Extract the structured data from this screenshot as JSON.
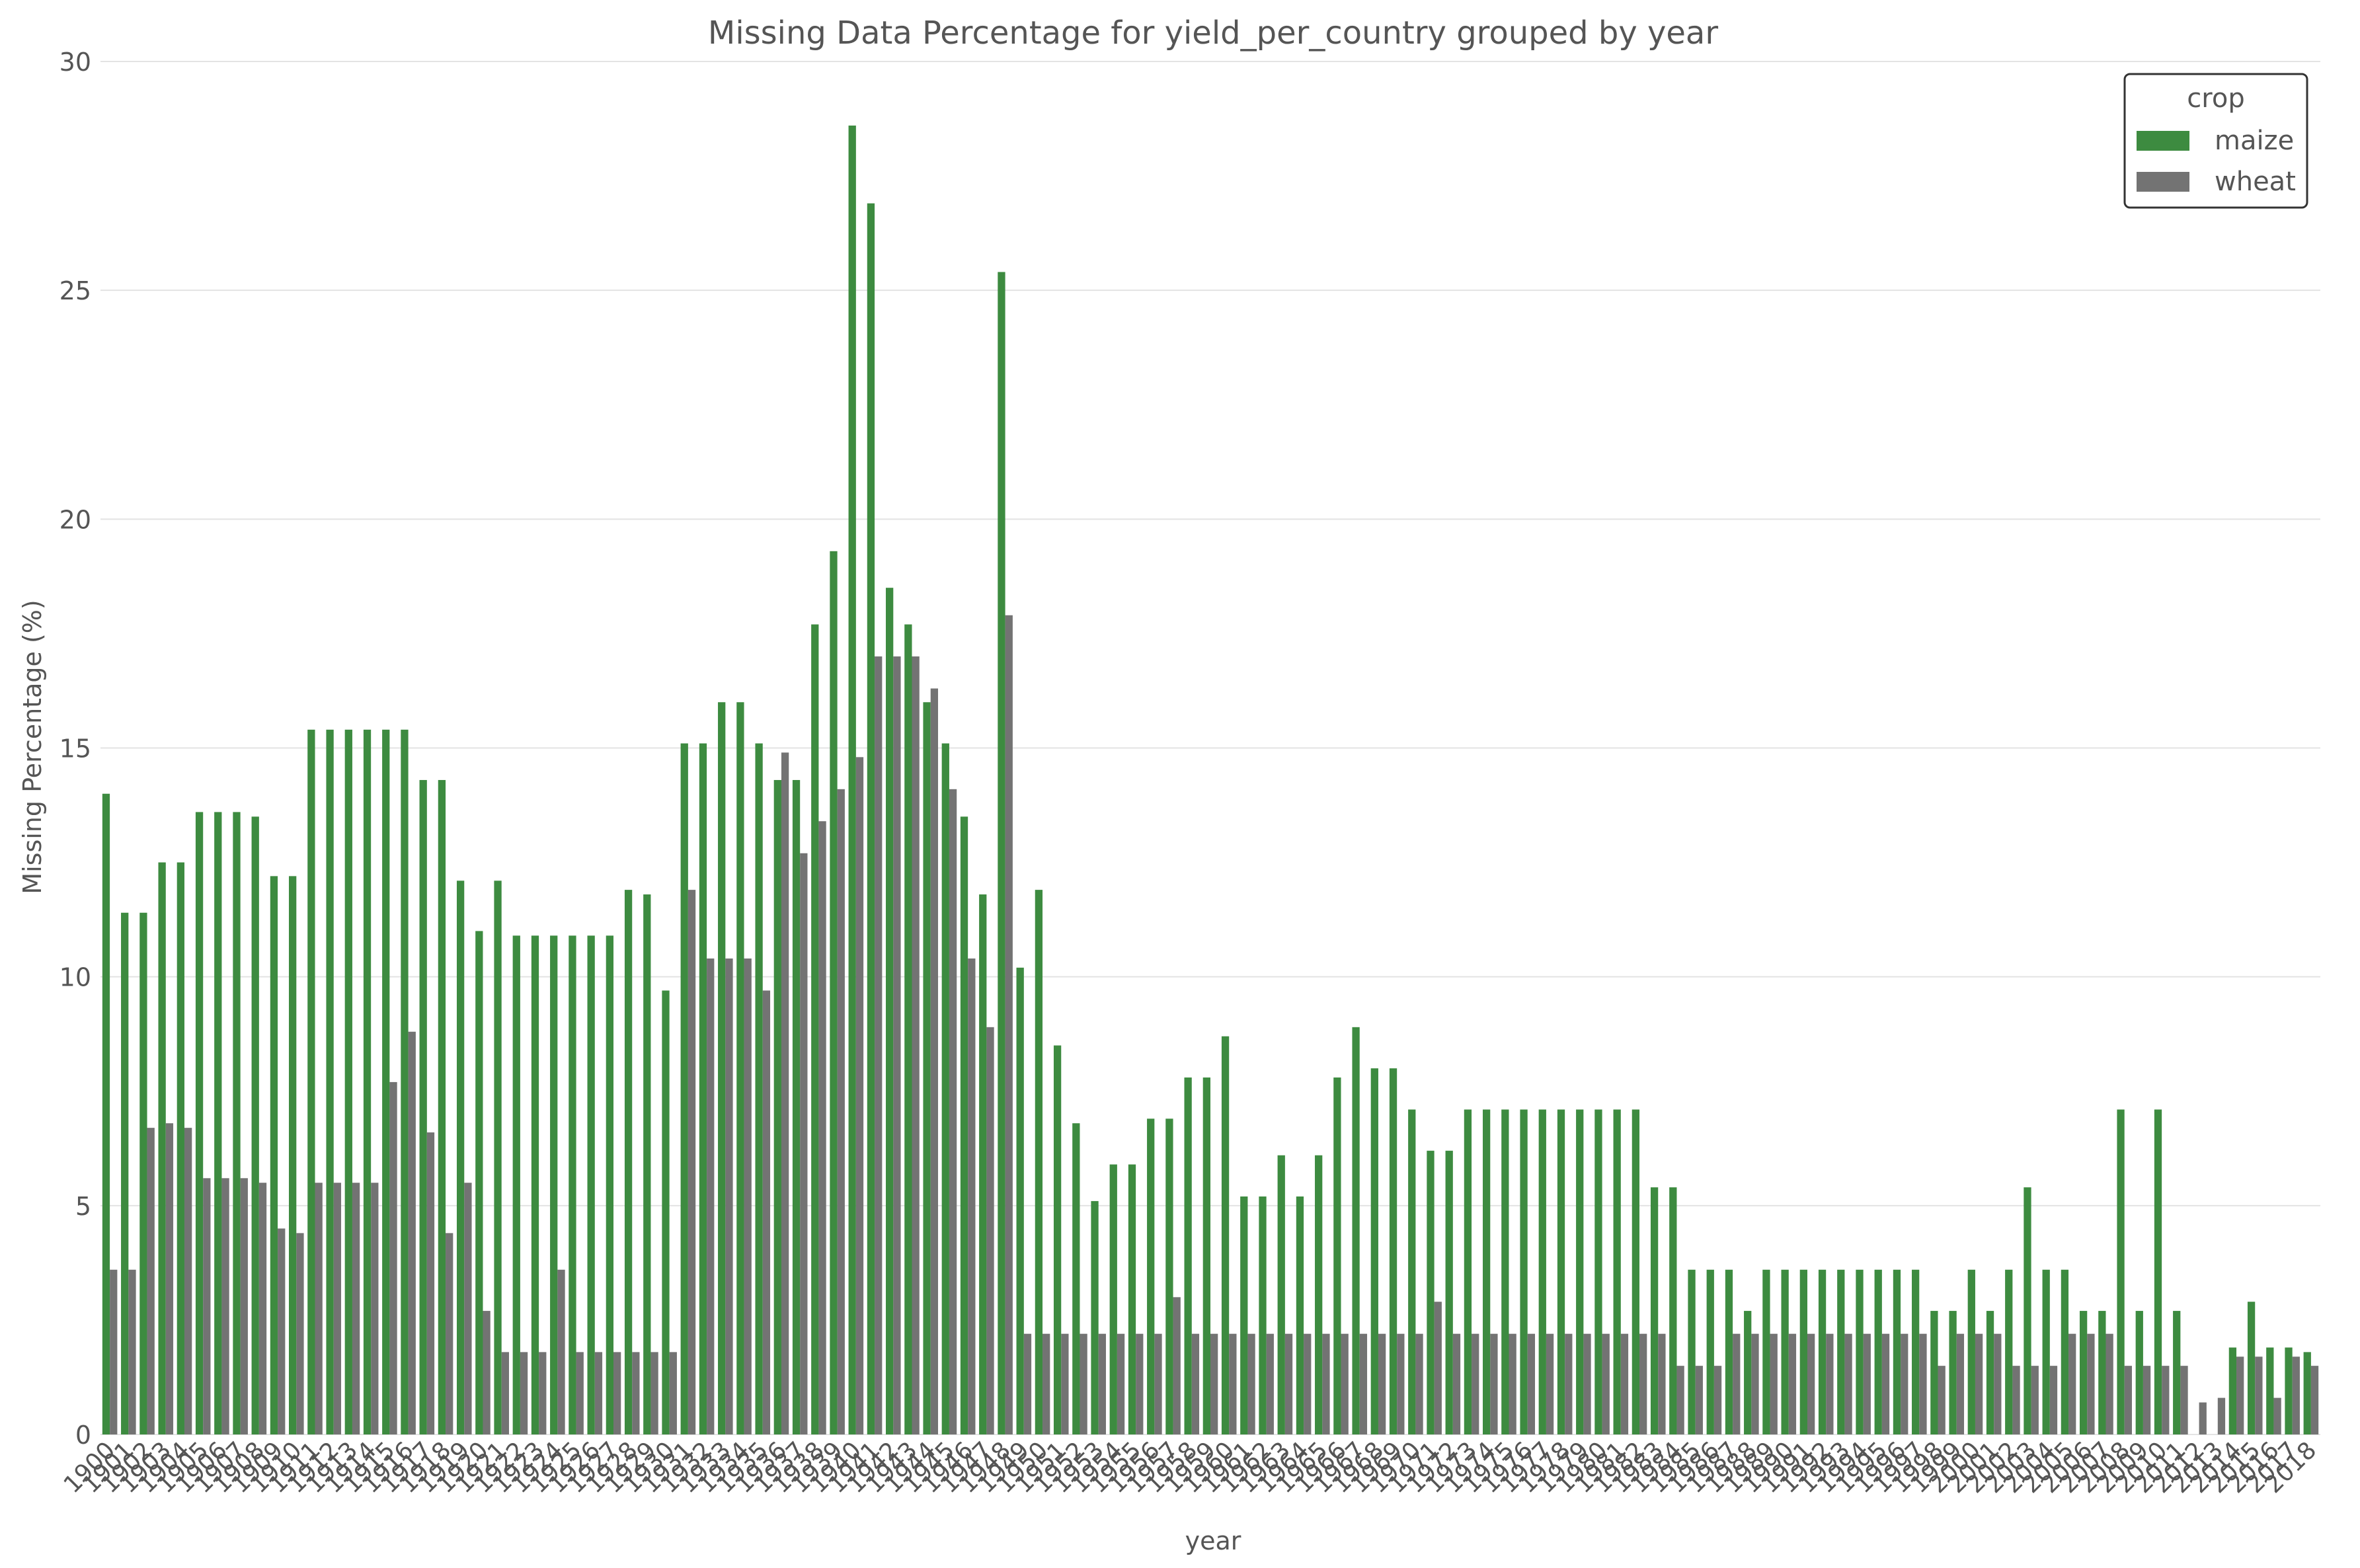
{
  "chart_data": {
    "type": "bar",
    "title": "Missing Data Percentage for yield_per_country grouped by year",
    "xlabel": "year",
    "ylabel": "Missing Percentage (%)",
    "ylim": [
      0,
      30
    ],
    "yticks": [
      0,
      5,
      10,
      15,
      20,
      25,
      30
    ],
    "grid": "horizontal",
    "legend": {
      "title": "crop",
      "position": "top-right"
    },
    "colors": {
      "maize": "#3d8b40",
      "wheat": "#737373"
    },
    "categories": [
      "1900",
      "1901",
      "1902",
      "1903",
      "1904",
      "1905",
      "1906",
      "1907",
      "1908",
      "1909",
      "1910",
      "1911",
      "1912",
      "1913",
      "1914",
      "1915",
      "1916",
      "1917",
      "1918",
      "1919",
      "1920",
      "1921",
      "1922",
      "1923",
      "1924",
      "1925",
      "1926",
      "1927",
      "1928",
      "1929",
      "1930",
      "1931",
      "1932",
      "1933",
      "1934",
      "1935",
      "1936",
      "1937",
      "1938",
      "1939",
      "1940",
      "1941",
      "1942",
      "1943",
      "1944",
      "1945",
      "1946",
      "1947",
      "1948",
      "1949",
      "1950",
      "1951",
      "1952",
      "1953",
      "1954",
      "1955",
      "1956",
      "1957",
      "1958",
      "1959",
      "1960",
      "1961",
      "1962",
      "1963",
      "1964",
      "1965",
      "1966",
      "1967",
      "1968",
      "1969",
      "1970",
      "1971",
      "1972",
      "1973",
      "1974",
      "1975",
      "1976",
      "1977",
      "1978",
      "1979",
      "1980",
      "1981",
      "1982",
      "1983",
      "1984",
      "1985",
      "1986",
      "1987",
      "1988",
      "1989",
      "1990",
      "1991",
      "1992",
      "1993",
      "1994",
      "1995",
      "1996",
      "1997",
      "1998",
      "1999",
      "2000",
      "2001",
      "2002",
      "2003",
      "2004",
      "2005",
      "2006",
      "2007",
      "2008",
      "2009",
      "2010",
      "2011",
      "2012",
      "2013",
      "2014",
      "2015",
      "2016",
      "2017",
      "2018"
    ],
    "series": [
      {
        "name": "maize",
        "values": [
          14.0,
          11.4,
          11.4,
          12.5,
          12.5,
          13.6,
          13.6,
          13.6,
          13.5,
          12.2,
          12.2,
          15.4,
          15.4,
          15.4,
          15.4,
          15.4,
          15.4,
          14.3,
          14.3,
          12.1,
          11.0,
          12.1,
          10.9,
          10.9,
          10.9,
          10.9,
          10.9,
          10.9,
          11.9,
          11.8,
          9.7,
          15.1,
          15.1,
          16.0,
          16.0,
          15.1,
          14.3,
          14.3,
          17.7,
          19.3,
          28.6,
          26.9,
          18.5,
          17.7,
          16.0,
          15.1,
          13.5,
          11.8,
          25.4,
          10.2,
          11.9,
          8.5,
          6.8,
          5.1,
          5.9,
          5.9,
          6.9,
          6.9,
          7.8,
          7.8,
          8.7,
          5.2,
          5.2,
          6.1,
          5.2,
          6.1,
          7.8,
          8.9,
          8.0,
          8.0,
          7.1,
          6.2,
          6.2,
          7.1,
          7.1,
          7.1,
          7.1,
          7.1,
          7.1,
          7.1,
          7.1,
          7.1,
          7.1,
          5.4,
          5.4,
          3.6,
          3.6,
          3.6,
          2.7,
          3.6,
          3.6,
          3.6,
          3.6,
          3.6,
          3.6,
          3.6,
          3.6,
          3.6,
          2.7,
          2.7,
          3.6,
          2.7,
          3.6,
          5.4,
          3.6,
          3.6,
          2.7,
          2.7,
          7.1,
          2.7,
          7.1,
          2.7,
          null,
          null,
          1.9,
          2.9,
          1.9,
          1.9,
          1.8
        ],
        "bars": "maize"
      },
      {
        "name": "wheat",
        "values": [
          3.6,
          3.6,
          6.7,
          6.8,
          6.7,
          5.6,
          5.6,
          5.6,
          5.5,
          4.5,
          4.4,
          5.5,
          5.5,
          5.5,
          5.5,
          7.7,
          8.8,
          6.6,
          4.4,
          5.5,
          2.7,
          1.8,
          1.8,
          1.8,
          3.6,
          1.8,
          1.8,
          1.8,
          1.8,
          1.8,
          1.8,
          11.9,
          10.4,
          10.4,
          10.4,
          9.7,
          14.9,
          12.7,
          13.4,
          14.1,
          14.8,
          17.0,
          17.0,
          17.0,
          16.3,
          14.1,
          10.4,
          8.9,
          17.9,
          2.2,
          2.2,
          2.2,
          2.2,
          2.2,
          2.2,
          2.2,
          2.2,
          3.0,
          2.2,
          2.2,
          2.2,
          2.2,
          2.2,
          2.2,
          2.2,
          2.2,
          2.2,
          2.2,
          2.2,
          2.2,
          2.2,
          2.9,
          2.2,
          2.2,
          2.2,
          2.2,
          2.2,
          2.2,
          2.2,
          2.2,
          2.2,
          2.2,
          2.2,
          2.2,
          1.5,
          1.5,
          1.5,
          2.2,
          2.2,
          2.2,
          2.2,
          2.2,
          2.2,
          2.2,
          2.2,
          2.2,
          2.2,
          2.2,
          1.5,
          2.2,
          2.2,
          2.2,
          1.5,
          1.5,
          1.5,
          2.2,
          2.2,
          2.2,
          1.5,
          1.5,
          1.5,
          1.5,
          0.7,
          0.8,
          1.7,
          1.7,
          0.8,
          1.7,
          1.5
        ]
      }
    ]
  }
}
